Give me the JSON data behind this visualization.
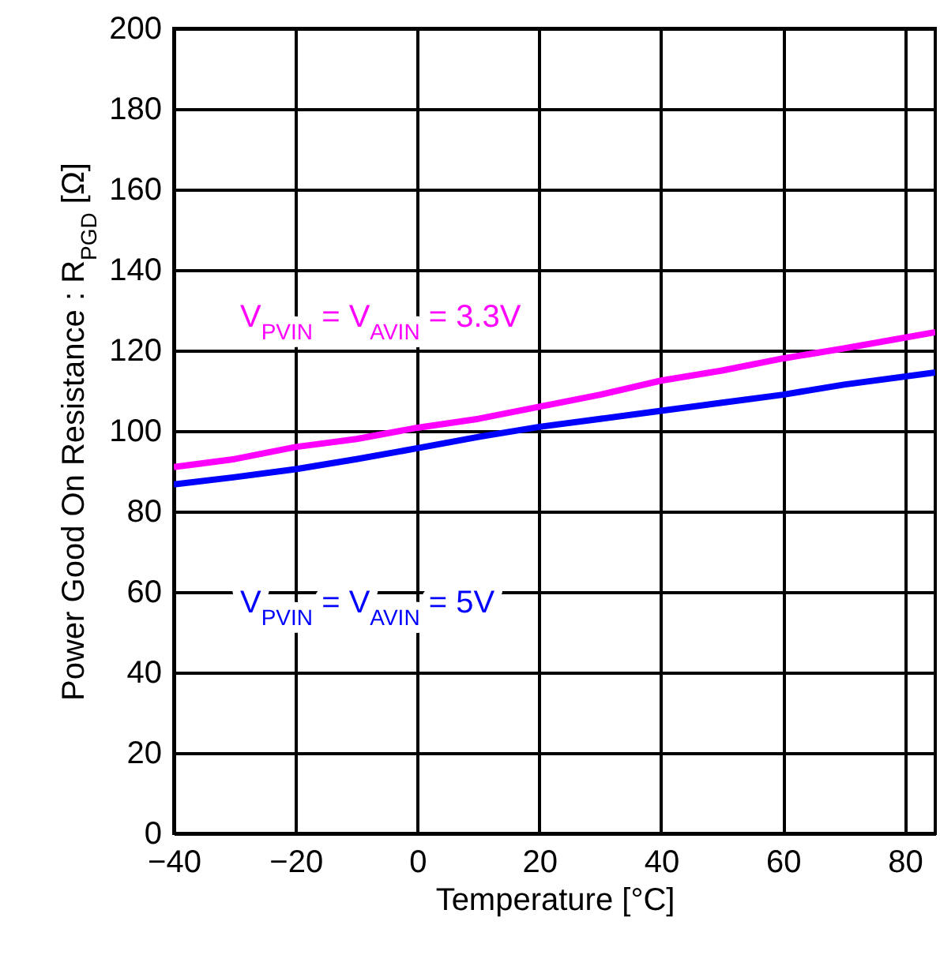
{
  "chart_data": {
    "type": "line",
    "xlabel": "Temperature [°C]",
    "ylabel": "Power Good On Resistance : R$_{PGD}$ [Ω]",
    "xlim": [
      -40,
      85
    ],
    "xticks": [
      -40,
      -20,
      0,
      20,
      40,
      60,
      80
    ],
    "ylim": [
      0,
      200
    ],
    "yticks": [
      0,
      20,
      40,
      60,
      80,
      100,
      120,
      140,
      160,
      180,
      200
    ],
    "grid": true,
    "line_style": "solid",
    "series": [
      {
        "name": "V$_{PVIN}$ = V$_{AVIN}$ = 3.3V",
        "color": "#ff00ff",
        "x": [
          -40,
          -30,
          -20,
          -10,
          0,
          10,
          20,
          30,
          40,
          50,
          60,
          70,
          85
        ],
        "values": [
          91,
          93,
          96,
          98,
          100.8,
          103,
          106,
          109,
          112.5,
          115,
          118,
          120.5,
          124.5
        ]
      },
      {
        "name": "V$_{PVIN}$ = V$_{AVIN}$ = 5V",
        "color": "#0000ff",
        "x": [
          -40,
          -30,
          -20,
          -10,
          0,
          10,
          20,
          30,
          40,
          50,
          60,
          70,
          85
        ],
        "values": [
          86.7,
          88.5,
          90.5,
          93,
          95.7,
          98.5,
          101,
          103,
          105,
          107,
          109,
          111.5,
          114.5
        ]
      }
    ]
  }
}
